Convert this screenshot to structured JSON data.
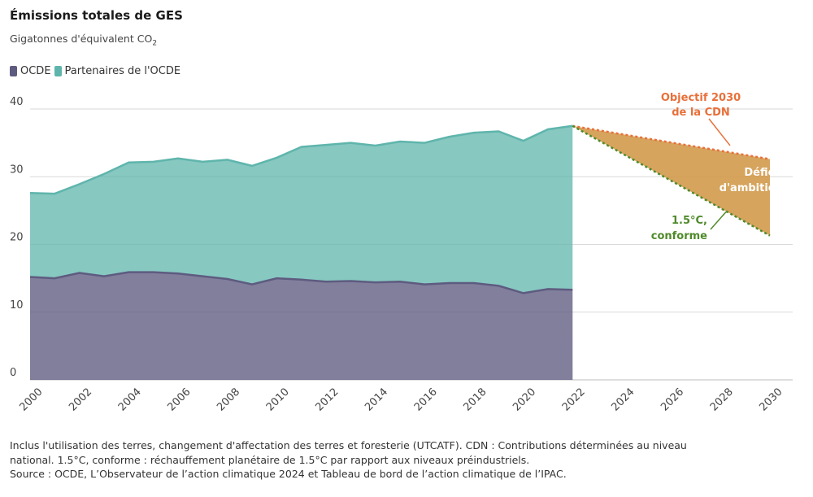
{
  "header": {
    "title": "Émissions totales de GES",
    "subtitle_main": "Gigatonnes d'équivalent CO",
    "subtitle_sub": "2"
  },
  "colors": {
    "ocde": "#5e5b80",
    "partenaires": "#5fb5ac",
    "cdn": "#e8703a",
    "conforme": "#4f8a2a",
    "deficit": "#d29a4b",
    "grid": "#d9d9d9"
  },
  "chart_data": {
    "type": "area",
    "title": "Émissions totales de GES",
    "ylabel": "Gigatonnes d'équivalent CO2",
    "xlim": [
      2000,
      2030
    ],
    "ylim": [
      0,
      40
    ],
    "yticks": [
      0,
      10,
      20,
      30,
      40
    ],
    "xticks": [
      2000,
      2002,
      2004,
      2006,
      2008,
      2010,
      2012,
      2014,
      2016,
      2018,
      2020,
      2022,
      2024,
      2026,
      2028,
      2030
    ],
    "grid": true,
    "legend_position": "top-left",
    "x": [
      2000,
      2001,
      2002,
      2003,
      2004,
      2005,
      2006,
      2007,
      2008,
      2009,
      2010,
      2011,
      2012,
      2013,
      2014,
      2015,
      2016,
      2017,
      2018,
      2019,
      2020,
      2021,
      2022
    ],
    "series": [
      {
        "name": "OCDE",
        "values": [
          15.2,
          15.0,
          15.8,
          15.3,
          15.9,
          15.9,
          15.7,
          15.3,
          14.9,
          14.1,
          15.0,
          14.8,
          14.5,
          14.6,
          14.4,
          14.5,
          14.1,
          14.3,
          14.3,
          13.9,
          12.8,
          13.4,
          13.3
        ]
      },
      {
        "name": "Partenaires de l'OCDE",
        "values": [
          12.4,
          12.5,
          13.1,
          15.1,
          16.2,
          16.3,
          17.0,
          16.9,
          17.6,
          17.5,
          17.8,
          19.6,
          20.2,
          20.4,
          20.2,
          20.7,
          20.9,
          21.6,
          22.2,
          22.8,
          22.5,
          23.6,
          24.2
        ]
      }
    ],
    "projections": [
      {
        "name": "Objectif 2030 de la CDN",
        "points": [
          [
            2022,
            37.5
          ],
          [
            2030,
            32.6
          ]
        ]
      },
      {
        "name": "1.5°C, conforme",
        "points": [
          [
            2022,
            37.5
          ],
          [
            2030,
            21.3
          ]
        ]
      }
    ],
    "annotations": {
      "cdn_line1": "Objectif 2030",
      "cdn_line2": "de la CDN",
      "deficit_line1": "Déficit",
      "deficit_line2": "d'ambition",
      "conforme_line1": "1.5°C,",
      "conforme_line2": "conforme"
    }
  },
  "footer": {
    "note_line1": "Inclus l'utilisation des terres, changement d'affectation des terres et foresterie (UTCATF). CDN : Contributions déterminées au niveau",
    "note_line2": "national. 1.5°C, conforme : réchauffement planétaire de 1.5°C par rapport aux niveaux préindustriels.",
    "note_line3": "Source : OCDE, L’Observateur de l’action climatique 2024 et Tableau de bord de l’action climatique de l’IPAC."
  }
}
